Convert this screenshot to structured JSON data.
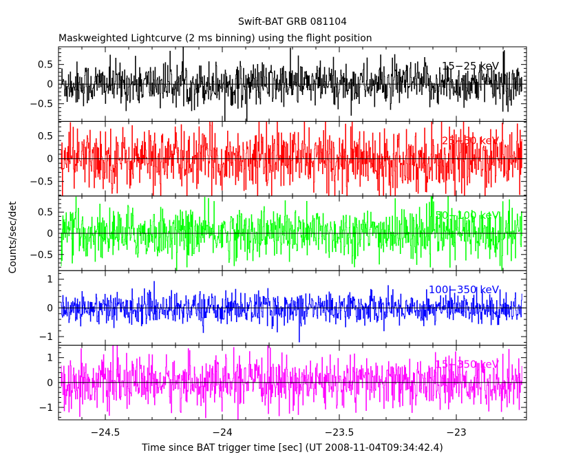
{
  "chart_data": {
    "type": "line",
    "title": "Swift-BAT GRB 081104",
    "subtitle": "Maskweighted Lightcurve (2 ms binning) using the flight position",
    "xlabel": "Time since BAT trigger time [sec] (UT 2008-11-04T09:34:42.4)",
    "ylabel": "Counts/sec/det",
    "xlim": [
      -24.7,
      -22.7
    ],
    "x_ticks": [
      -24.5,
      -24,
      -23.5,
      -23
    ],
    "x_tick_labels": [
      "−24.5",
      "−24",
      "−23.5",
      "−23"
    ],
    "panels": [
      {
        "band": "15−25 keV",
        "color": "#000000",
        "ylim": [
          -0.95,
          0.95
        ],
        "y_ticks": [
          -0.5,
          0,
          0.5
        ],
        "y_tick_labels": [
          "−0.5",
          "0",
          "0.5"
        ],
        "amplitude": 0.28
      },
      {
        "band": "25−50 keV",
        "color": "#ff0000",
        "ylim": [
          -0.82,
          0.82
        ],
        "y_ticks": [
          -0.5,
          0,
          0.5
        ],
        "y_tick_labels": [
          "−0.5",
          "0",
          "0.5"
        ],
        "amplitude": 0.34
      },
      {
        "band": "50−100 keV",
        "color": "#00ff00",
        "ylim": [
          -0.88,
          0.88
        ],
        "y_ticks": [
          -0.5,
          0,
          0.5
        ],
        "y_tick_labels": [
          "−0.5",
          "0",
          "0.5"
        ],
        "amplitude": 0.3
      },
      {
        "band": "100−350 keV",
        "color": "#0000ff",
        "ylim": [
          -1.3,
          1.3
        ],
        "y_ticks": [
          -1,
          0,
          1
        ],
        "y_tick_labels": [
          "−1",
          "0",
          "1"
        ],
        "amplitude": 0.28
      },
      {
        "band": "15−350 keV",
        "color": "#ff00ff",
        "ylim": [
          -1.5,
          1.5
        ],
        "y_ticks": [
          -1,
          0,
          1
        ],
        "y_tick_labels": [
          "−1",
          "0",
          "1"
        ],
        "amplitude": 0.5
      }
    ],
    "data_range": [
      -24.69,
      -22.72
    ],
    "bin_width": 0.002
  }
}
